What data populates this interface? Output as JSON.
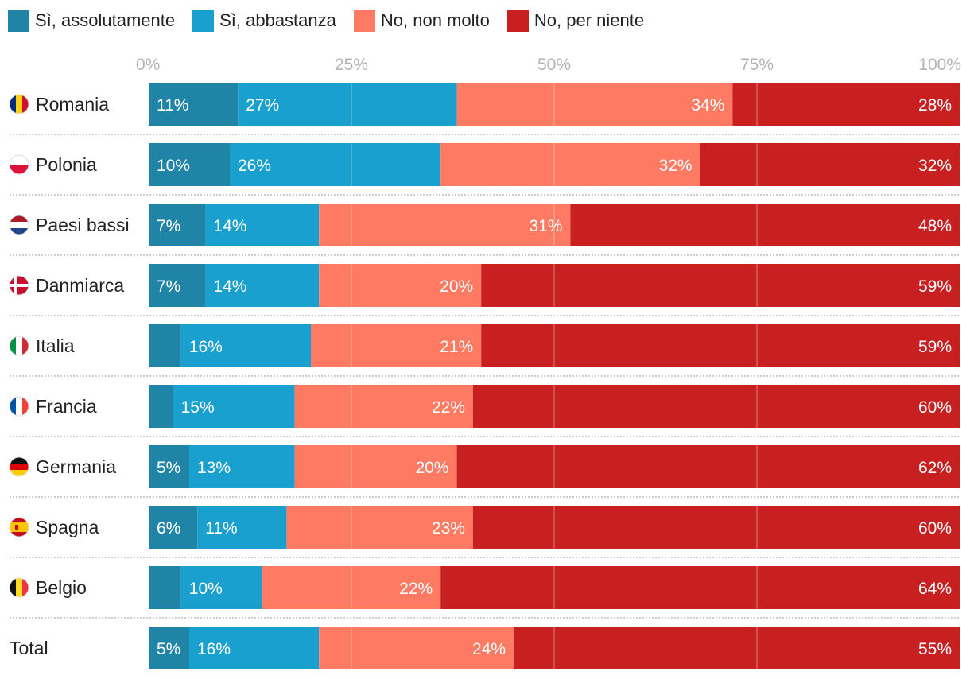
{
  "chart_data": {
    "type": "bar",
    "orientation": "horizontal",
    "stacked": true,
    "xlim": [
      0,
      100
    ],
    "x_ticks": [
      "0%",
      "25%",
      "50%",
      "75%",
      "100%"
    ],
    "grid": true,
    "legend_position": "top-left",
    "series": [
      {
        "name": "Sì, assolutamente",
        "color": "#1f84a6"
      },
      {
        "name": "Sì, abbastanza",
        "color": "#19a0cf"
      },
      {
        "name": "No, non molto",
        "color": "#ff7a62"
      },
      {
        "name": "No, per niente",
        "color": "#c81f21"
      }
    ],
    "rows": [
      {
        "label": "Romania",
        "flag": "romania-flag-icon",
        "values": [
          11,
          27,
          34,
          28
        ],
        "labels": [
          "11%",
          "27%",
          "34%",
          "28%"
        ]
      },
      {
        "label": "Polonia",
        "flag": "poland-flag-icon",
        "values": [
          10,
          26,
          32,
          32
        ],
        "labels": [
          "10%",
          "26%",
          "32%",
          "32%"
        ]
      },
      {
        "label": "Paesi bassi",
        "flag": "netherlands-flag-icon",
        "values": [
          7,
          14,
          31,
          48
        ],
        "labels": [
          "7%",
          "14%",
          "31%",
          "48%"
        ]
      },
      {
        "label": "Danmiarca",
        "flag": "denmark-flag-icon",
        "values": [
          7,
          14,
          20,
          59
        ],
        "labels": [
          "7%",
          "14%",
          "20%",
          "59%"
        ]
      },
      {
        "label": "Italia",
        "flag": "italy-flag-icon",
        "values": [
          4,
          16,
          21,
          59
        ],
        "labels": [
          "",
          "16%",
          "21%",
          "59%"
        ]
      },
      {
        "label": "Francia",
        "flag": "france-flag-icon",
        "values": [
          3,
          15,
          22,
          60
        ],
        "labels": [
          "",
          "15%",
          "22%",
          "60%"
        ]
      },
      {
        "label": "Germania",
        "flag": "germany-flag-icon",
        "values": [
          5,
          13,
          20,
          62
        ],
        "labels": [
          "5%",
          "13%",
          "20%",
          "62%"
        ]
      },
      {
        "label": "Spagna",
        "flag": "spain-flag-icon",
        "values": [
          6,
          11,
          23,
          60
        ],
        "labels": [
          "6%",
          "11%",
          "23%",
          "60%"
        ]
      },
      {
        "label": "Belgio",
        "flag": "belgium-flag-icon",
        "values": [
          4,
          10,
          22,
          64
        ],
        "labels": [
          "",
          "10%",
          "22%",
          "64%"
        ]
      },
      {
        "label": "Total",
        "flag": "",
        "values": [
          5,
          16,
          24,
          55
        ],
        "labels": [
          "5%",
          "16%",
          "24%",
          "55%"
        ]
      }
    ]
  }
}
